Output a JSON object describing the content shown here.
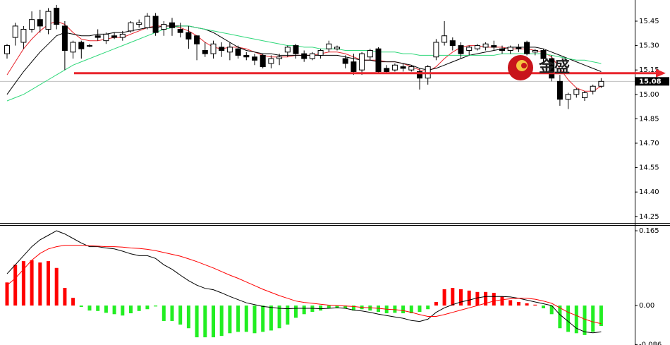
{
  "chart_data": [
    {
      "type": "candlestick",
      "open": [
        15.25,
        15.35,
        15.32,
        15.4,
        15.46,
        15.4,
        15.53,
        15.42,
        15.26,
        15.32,
        15.3,
        15.36,
        15.33,
        15.36,
        15.35,
        15.39,
        15.43,
        15.41,
        15.48,
        15.4,
        15.44,
        15.4,
        15.38,
        15.36,
        15.27,
        15.25,
        15.29,
        15.26,
        15.28,
        15.24,
        15.23,
        15.24,
        15.19,
        15.22,
        15.26,
        15.3,
        15.25,
        15.22,
        15.24,
        15.28,
        15.28,
        15.22,
        15.2,
        15.15,
        15.23,
        15.28,
        15.16,
        15.15,
        15.17,
        15.15,
        15.14,
        15.1,
        15.23,
        15.32,
        15.33,
        15.3,
        15.27,
        15.28,
        15.29,
        15.3,
        15.28,
        15.27,
        15.29,
        15.32,
        15.26,
        15.27,
        15.22,
        15.08,
        14.97,
        15.0,
        14.98,
        15.02,
        15.05
      ],
      "high": [
        15.31,
        15.44,
        15.42,
        15.51,
        15.52,
        15.53,
        15.55,
        15.45,
        15.33,
        15.33,
        15.31,
        15.4,
        15.38,
        15.38,
        15.39,
        15.45,
        15.46,
        15.5,
        15.5,
        15.45,
        15.47,
        15.44,
        15.42,
        15.36,
        15.32,
        15.33,
        15.32,
        15.32,
        15.3,
        15.26,
        15.25,
        15.25,
        15.24,
        15.25,
        15.3,
        15.31,
        15.27,
        15.26,
        15.28,
        15.33,
        15.3,
        15.24,
        15.25,
        15.26,
        15.28,
        15.29,
        15.18,
        15.19,
        15.19,
        15.18,
        15.16,
        15.18,
        15.34,
        15.45,
        15.35,
        15.32,
        15.3,
        15.31,
        15.32,
        15.33,
        15.3,
        15.3,
        15.31,
        15.33,
        15.28,
        15.28,
        15.24,
        15.12,
        15.01,
        15.04,
        15.02,
        15.06,
        15.1
      ],
      "low": [
        15.22,
        15.3,
        15.28,
        15.38,
        15.38,
        15.37,
        15.4,
        15.15,
        15.22,
        15.22,
        15.29,
        15.33,
        15.31,
        15.34,
        15.33,
        15.38,
        15.41,
        15.4,
        15.36,
        15.36,
        15.36,
        15.35,
        15.28,
        15.21,
        15.23,
        15.22,
        15.23,
        15.21,
        15.22,
        15.21,
        15.18,
        15.16,
        15.16,
        15.18,
        15.23,
        15.22,
        15.2,
        15.21,
        15.22,
        15.26,
        15.27,
        15.16,
        15.12,
        15.12,
        15.21,
        15.13,
        15.13,
        15.14,
        15.14,
        15.14,
        15.03,
        15.06,
        15.21,
        15.3,
        15.27,
        15.22,
        15.24,
        15.27,
        15.27,
        15.27,
        15.25,
        15.25,
        15.26,
        15.24,
        15.24,
        15.2,
        15.08,
        14.93,
        14.91,
        14.98,
        14.96,
        15.0,
        15.04
      ],
      "close": [
        15.3,
        15.42,
        15.4,
        15.46,
        15.42,
        15.51,
        15.43,
        15.27,
        15.32,
        15.28,
        15.3,
        15.35,
        15.37,
        15.35,
        15.37,
        15.44,
        15.44,
        15.48,
        15.38,
        15.43,
        15.41,
        15.38,
        15.34,
        15.31,
        15.25,
        15.31,
        15.27,
        15.29,
        15.24,
        15.23,
        15.21,
        15.17,
        15.22,
        15.23,
        15.29,
        15.25,
        15.22,
        15.25,
        15.27,
        15.31,
        15.29,
        15.19,
        15.14,
        15.25,
        15.27,
        15.14,
        15.14,
        15.18,
        15.16,
        15.17,
        15.1,
        15.17,
        15.32,
        15.36,
        15.3,
        15.25,
        15.29,
        15.3,
        15.31,
        15.29,
        15.27,
        15.29,
        15.28,
        15.25,
        15.27,
        15.22,
        15.1,
        14.97,
        15.0,
        15.03,
        15.01,
        15.05,
        15.08
      ],
      "lines": [
        {
          "color": "#e8262d",
          "values": [
            15.12,
            15.2,
            15.28,
            15.34,
            15.39,
            15.43,
            15.45,
            15.43,
            15.38,
            15.34,
            15.33,
            15.33,
            15.34,
            15.35,
            15.35,
            15.37,
            15.39,
            15.41,
            15.42,
            15.42,
            15.42,
            15.41,
            15.39,
            15.36,
            15.32,
            15.29,
            15.28,
            15.29,
            15.29,
            15.28,
            15.26,
            15.24,
            15.23,
            15.23,
            15.23,
            15.24,
            15.24,
            15.24,
            15.25,
            15.26,
            15.26,
            15.25,
            15.23,
            15.21,
            15.21,
            15.21,
            15.2,
            15.2,
            15.19,
            15.17,
            15.15,
            15.14,
            15.17,
            15.22,
            15.26,
            15.29,
            15.3,
            15.3,
            15.29,
            15.29,
            15.29,
            15.28,
            15.28,
            15.28,
            15.27,
            15.26,
            15.23,
            15.16,
            15.09,
            15.04,
            15.02,
            15.02,
            15.05
          ]
        },
        {
          "color": "#000000",
          "values": [
            15.0,
            15.07,
            15.14,
            15.2,
            15.26,
            15.31,
            15.36,
            15.38,
            15.37,
            15.36,
            15.36,
            15.37,
            15.37,
            15.38,
            15.38,
            15.39,
            15.4,
            15.41,
            15.41,
            15.42,
            15.42,
            15.42,
            15.42,
            15.41,
            15.4,
            15.38,
            15.35,
            15.32,
            15.29,
            15.27,
            15.26,
            15.25,
            15.25,
            15.24,
            15.24,
            15.24,
            15.24,
            15.24,
            15.24,
            15.24,
            15.24,
            15.23,
            15.22,
            15.21,
            15.21,
            15.2,
            15.2,
            15.2,
            15.19,
            15.18,
            15.16,
            15.15,
            15.16,
            15.18,
            15.2,
            15.22,
            15.24,
            15.25,
            15.26,
            15.27,
            15.28,
            15.29,
            15.29,
            15.29,
            15.29,
            15.28,
            15.26,
            15.24,
            15.22,
            15.2,
            15.18,
            15.16,
            15.14
          ]
        },
        {
          "color": "#2fd87a",
          "values": [
            14.96,
            14.98,
            15.0,
            15.03,
            15.06,
            15.09,
            15.12,
            15.15,
            15.18,
            15.2,
            15.22,
            15.24,
            15.26,
            15.28,
            15.3,
            15.32,
            15.34,
            15.36,
            15.38,
            15.4,
            15.41,
            15.42,
            15.42,
            15.41,
            15.4,
            15.39,
            15.38,
            15.37,
            15.36,
            15.35,
            15.34,
            15.33,
            15.32,
            15.31,
            15.3,
            15.3,
            15.29,
            15.29,
            15.28,
            15.28,
            15.28,
            15.27,
            15.27,
            15.27,
            15.27,
            15.26,
            15.26,
            15.26,
            15.25,
            15.25,
            15.24,
            15.24,
            15.24,
            15.24,
            15.24,
            15.24,
            15.24,
            15.24,
            15.24,
            15.24,
            15.25,
            15.25,
            15.25,
            15.25,
            15.25,
            15.25,
            15.24,
            15.23,
            15.22,
            15.21,
            15.21,
            15.2,
            15.19
          ]
        }
      ],
      "hline": {
        "value": 15.13,
        "color": "#e8262d"
      },
      "last_price": 15.08,
      "watermark": "金盛",
      "ylim": [
        14.21,
        15.58
      ],
      "yticks": [
        15.45,
        {
          "value": 15.3,
          "label": "15.30"
        },
        15.15,
        {
          "value": 15.0,
          "label": "15.00"
        },
        14.85,
        {
          "value": 14.7,
          "label": "14.70"
        },
        14.55,
        {
          "value": 14.4,
          "label": "14.40"
        },
        14.25
      ]
    },
    {
      "type": "macd",
      "histogram": [
        0.051,
        0.09,
        0.098,
        0.1,
        0.095,
        0.098,
        0.083,
        0.039,
        0.017,
        -0.003,
        -0.011,
        -0.012,
        -0.016,
        -0.019,
        -0.022,
        -0.017,
        -0.012,
        -0.008,
        -0.002,
        -0.034,
        -0.034,
        -0.042,
        -0.05,
        -0.07,
        -0.07,
        -0.07,
        -0.067,
        -0.061,
        -0.058,
        -0.058,
        -0.061,
        -0.058,
        -0.055,
        -0.05,
        -0.042,
        -0.027,
        -0.019,
        -0.014,
        -0.011,
        -0.006,
        -0.005,
        -0.006,
        -0.011,
        -0.008,
        -0.011,
        -0.014,
        -0.017,
        -0.016,
        -0.017,
        -0.017,
        -0.014,
        -0.008,
        0.008,
        0.036,
        0.039,
        0.036,
        0.033,
        0.03,
        0.03,
        0.028,
        0.02,
        0.012,
        0.008,
        0.005,
        0.002,
        -0.006,
        -0.019,
        -0.05,
        -0.058,
        -0.061,
        -0.065,
        -0.058,
        -0.045
      ],
      "up_color": "#ff0000",
      "down_color": "#22ee22",
      "lines": [
        {
          "color": "#000000",
          "values": [
            0.07,
            0.09,
            0.11,
            0.13,
            0.145,
            0.155,
            0.165,
            0.158,
            0.148,
            0.138,
            0.13,
            0.13,
            0.127,
            0.125,
            0.12,
            0.114,
            0.11,
            0.11,
            0.104,
            0.09,
            0.08,
            0.067,
            0.055,
            0.045,
            0.038,
            0.035,
            0.028,
            0.02,
            0.013,
            0.006,
            0.002,
            -0.002,
            -0.004,
            -0.006,
            -0.007,
            -0.006,
            -0.006,
            -0.006,
            -0.007,
            -0.006,
            -0.005,
            -0.006,
            -0.01,
            -0.012,
            -0.015,
            -0.019,
            -0.022,
            -0.025,
            -0.028,
            -0.033,
            -0.035,
            -0.03,
            -0.015,
            -0.005,
            0.002,
            0.008,
            0.012,
            0.017,
            0.02,
            0.02,
            0.02,
            0.019,
            0.016,
            0.012,
            0.008,
            0.004,
            0.0,
            -0.02,
            -0.035,
            -0.05,
            -0.058,
            -0.06,
            -0.058
          ]
        },
        {
          "color": "#ff0000",
          "values": [
            0.045,
            0.06,
            0.08,
            0.1,
            0.115,
            0.125,
            0.13,
            0.133,
            0.133,
            0.133,
            0.132,
            0.131,
            0.13,
            0.13,
            0.129,
            0.127,
            0.126,
            0.124,
            0.121,
            0.117,
            0.113,
            0.109,
            0.103,
            0.097,
            0.09,
            0.083,
            0.075,
            0.067,
            0.06,
            0.052,
            0.044,
            0.036,
            0.029,
            0.022,
            0.016,
            0.01,
            0.007,
            0.005,
            0.003,
            0.001,
            0.0,
            -0.001,
            -0.002,
            -0.004,
            -0.005,
            -0.006,
            -0.008,
            -0.009,
            -0.011,
            -0.015,
            -0.02,
            -0.024,
            -0.024,
            -0.02,
            -0.015,
            -0.01,
            -0.005,
            0.0,
            0.005,
            0.01,
            0.013,
            0.015,
            0.016,
            0.016,
            0.014,
            0.01,
            0.005,
            -0.005,
            -0.015,
            -0.022,
            -0.03,
            -0.036,
            -0.04
          ]
        }
      ],
      "ylim": [
        -0.087,
        0.176
      ],
      "yticks": [
        0.165,
        {
          "value": 0.0,
          "label": "0.00"
        },
        -0.086
      ]
    }
  ]
}
